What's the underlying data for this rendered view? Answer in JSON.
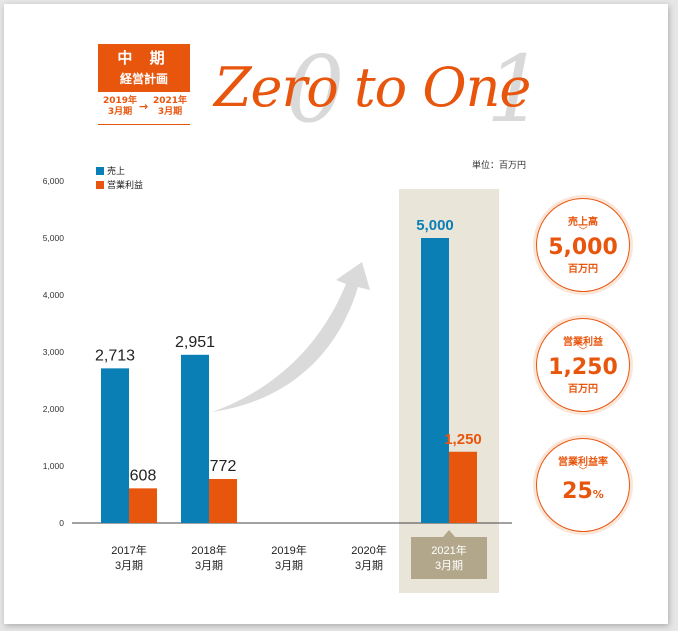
{
  "badge": {
    "line1": "中 期",
    "line2": "経営計画",
    "from": [
      "2019年",
      "3月期"
    ],
    "to": [
      "2021年",
      "3月期"
    ],
    "arrow": "→"
  },
  "title": "Zero to One",
  "ghost_digits": [
    "0",
    "1"
  ],
  "unit_label": "単位：百万円",
  "colors": {
    "sales": "#0a7fb5",
    "profit": "#e8560e",
    "highlight": "#eae5d9",
    "label_box": "#b3a78b"
  },
  "chart_data": {
    "type": "bar",
    "categories": [
      [
        "2017年",
        "3月期"
      ],
      [
        "2018年",
        "3月期"
      ],
      [
        "2019年",
        "3月期"
      ],
      [
        "2020年",
        "3月期"
      ],
      [
        "2021年",
        "3月期"
      ]
    ],
    "series": [
      {
        "name": "売上",
        "values": [
          2713,
          2951,
          null,
          null,
          5000
        ],
        "labels": [
          "2,713",
          "2,951",
          "",
          "",
          "5,000"
        ]
      },
      {
        "name": "営業利益",
        "values": [
          608,
          772,
          null,
          null,
          1250
        ],
        "labels": [
          "608",
          "772",
          "",
          "",
          "1,250"
        ]
      }
    ],
    "y_ticks": [
      0,
      1000,
      2000,
      3000,
      4000,
      5000,
      6000
    ],
    "y_tick_labels": [
      "0",
      "1,000",
      "2,000",
      "3,000",
      "4,000",
      "5,000",
      "6,000"
    ],
    "ylim": [
      0,
      6000
    ],
    "highlight_category": 4,
    "legend_position": "top-left"
  },
  "kpis": [
    {
      "label": "売上高",
      "chev": "﹀",
      "value": "5,000",
      "unit": "百万円"
    },
    {
      "label": "営業利益",
      "chev": "﹀",
      "value": "1,250",
      "unit": "百万円"
    },
    {
      "label": "営業利益率",
      "chev": "﹀",
      "value": "25",
      "unit": "%"
    }
  ]
}
